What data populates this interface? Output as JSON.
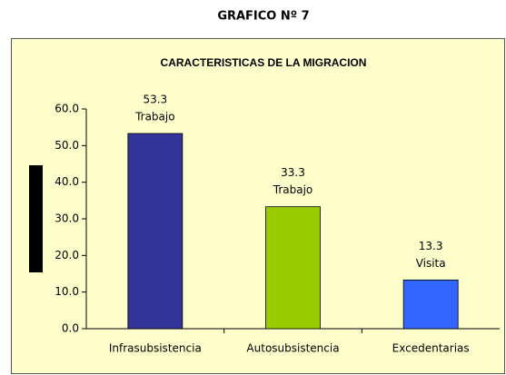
{
  "header": "GRAFICO Nº 7",
  "chart_data": {
    "type": "bar",
    "title": "CARACTERISTICAS DE LA MIGRACION",
    "categories": [
      "Infrasubsistencia",
      "Autosubsistencia",
      "Excedentarias"
    ],
    "values": [
      53.3,
      33.3,
      13.3
    ],
    "annotations": [
      "Trabajo",
      "Trabajo",
      "Visita"
    ],
    "colors": [
      "#333399",
      "#99cc00",
      "#3366ff"
    ],
    "ylim": [
      0,
      60
    ],
    "yticks": [
      {
        "value": 0,
        "label": "0.0"
      },
      {
        "value": 10,
        "label": "10.0"
      },
      {
        "value": 20,
        "label": "20.0"
      },
      {
        "value": 30,
        "label": "30.0"
      },
      {
        "value": 40,
        "label": "40.0"
      },
      {
        "value": 50,
        "label": "50.0"
      },
      {
        "value": 60,
        "label": "60.0"
      }
    ],
    "grid": false
  }
}
